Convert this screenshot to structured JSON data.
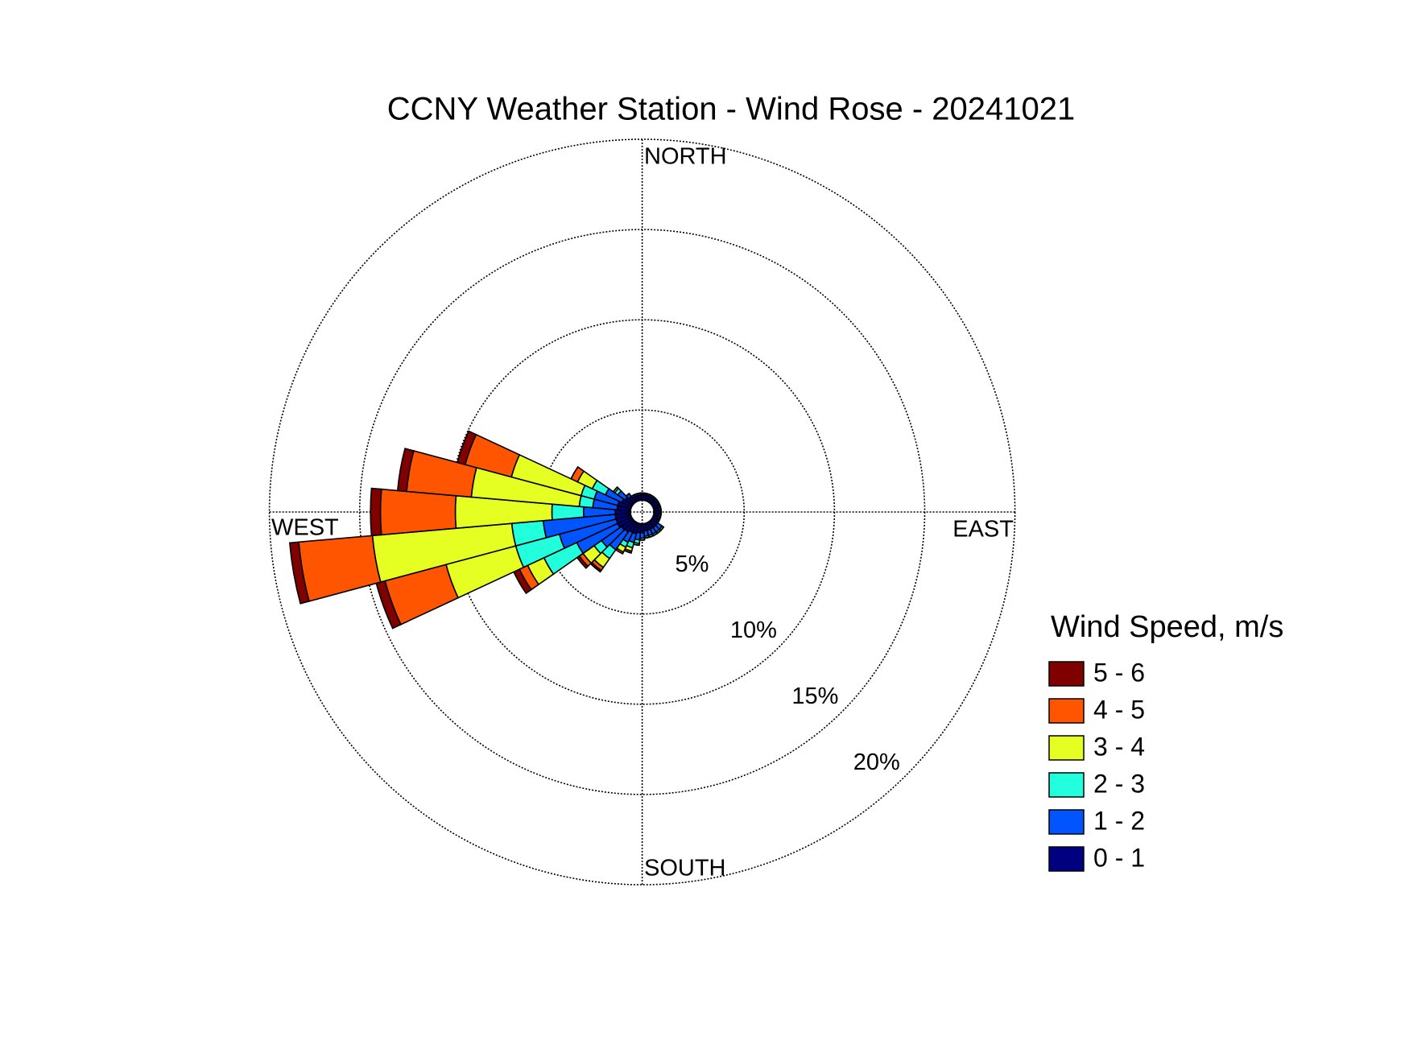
{
  "chart_data": {
    "type": "windrose",
    "title": "CCNY Weather Station - Wind Rose - 20241021",
    "direction_labels": {
      "north": "NORTH",
      "east": "EAST",
      "south": "SOUTH",
      "west": "WEST"
    },
    "legend_title": "Wind Speed, m/s",
    "x": [
      0,
      10,
      20,
      30,
      40,
      50,
      60,
      70,
      80,
      90,
      100,
      110,
      120,
      130,
      140,
      150,
      160,
      170,
      180,
      190,
      200,
      210,
      220,
      230,
      240,
      250,
      260,
      270,
      280,
      290,
      300,
      310,
      320,
      330,
      340,
      350
    ],
    "ylim": [
      0,
      20
    ],
    "yticks": [
      {
        "value": 5,
        "label": "5%"
      },
      {
        "value": 10,
        "label": "10%"
      },
      {
        "value": 15,
        "label": "15%"
      },
      {
        "value": 20,
        "label": "20%"
      }
    ],
    "series": [
      {
        "name": "0 - 1",
        "color": "#000080",
        "values": [
          0.3,
          0.3,
          0.3,
          0.3,
          0.3,
          0.3,
          0.3,
          0.3,
          0.3,
          0.3,
          0.3,
          0.3,
          0.3,
          0.4,
          0.4,
          0.4,
          0.4,
          0.4,
          0.5,
          0.5,
          0.6,
          0.6,
          0.7,
          0.75,
          0.85,
          0.85,
          0.85,
          0.85,
          0.75,
          0.75,
          0.6,
          0.5,
          0.4,
          0.3,
          0.3,
          0.3
        ]
      },
      {
        "name": "1 - 2",
        "color": "#0055ff",
        "values": [
          0.1,
          0.1,
          0.1,
          0.1,
          0.1,
          0.1,
          0.1,
          0.1,
          0.1,
          0.1,
          0.1,
          0.1,
          0.1,
          0.3,
          0.3,
          0.3,
          0.3,
          0.3,
          0.3,
          0.4,
          0.5,
          0.6,
          1.2,
          1.35,
          2.5,
          3.25,
          4.0,
          1.75,
          1.35,
          1.35,
          1.0,
          0.5,
          0.2,
          0.1,
          0.1,
          0.1
        ]
      },
      {
        "name": "2 - 3",
        "color": "#22ffdd",
        "values": [
          0,
          0,
          0,
          0,
          0,
          0,
          0,
          0,
          0,
          0,
          0,
          0,
          0,
          0.1,
          0.1,
          0.1,
          0.1,
          0.1,
          0.1,
          0.2,
          0.3,
          0.3,
          0.6,
          0.5,
          2.0,
          2.5,
          1.75,
          1.75,
          0.75,
          0.75,
          0.8,
          0.2,
          0,
          0,
          0,
          0
        ]
      },
      {
        "name": "3 - 4",
        "color": "#e6ff22",
        "values": [
          0,
          0,
          0,
          0,
          0,
          0,
          0,
          0,
          0,
          0,
          0,
          0,
          0,
          0,
          0,
          0,
          0,
          0,
          0,
          0.1,
          0.2,
          0.3,
          0.6,
          0.75,
          1.0,
          4.0,
          7.75,
          5.35,
          6.0,
          4.0,
          0.9,
          0.1,
          0,
          0,
          0,
          0
        ]
      },
      {
        "name": "4 - 5",
        "color": "#ff5500",
        "values": [
          0,
          0,
          0,
          0,
          0,
          0,
          0,
          0,
          0,
          0,
          0,
          0,
          0,
          0,
          0,
          0,
          0,
          0,
          0,
          0,
          0.1,
          0.1,
          0.2,
          0.25,
          0.5,
          3.5,
          4.1,
          4.15,
          3.6,
          2.65,
          0.4,
          0,
          0,
          0,
          0,
          0
        ]
      },
      {
        "name": "5 - 6",
        "color": "#800000",
        "values": [
          0,
          0,
          0,
          0,
          0,
          0,
          0,
          0,
          0,
          0,
          0,
          0,
          0,
          0,
          0,
          0,
          0,
          0,
          0,
          0,
          0,
          0,
          0.1,
          0.15,
          0.35,
          0.5,
          0.5,
          0.55,
          0.5,
          0.45,
          0,
          0,
          0,
          0,
          0,
          0
        ]
      }
    ]
  }
}
